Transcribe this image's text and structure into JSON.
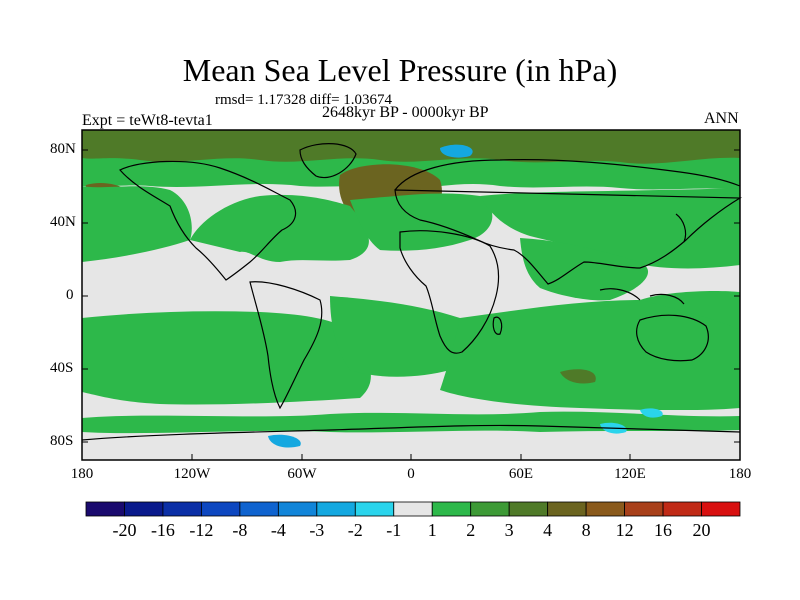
{
  "title": "Mean Sea Level Pressure (in hPa)",
  "stats": "rmsd= 1.17328 diff= 1.03674",
  "period": "2648kyr BP - 0000kyr BP",
  "experiment": "Expt = teWt8-tevta1",
  "season": "ANN",
  "lat_labels": [
    "80N",
    "40N",
    "0",
    "40S",
    "80S"
  ],
  "lon_labels": [
    "180",
    "120W",
    "60W",
    "0",
    "60E",
    "120E",
    "180"
  ],
  "colorbar": {
    "labels": [
      "-20",
      "-16",
      "-12",
      "-8",
      "-4",
      "-3",
      "-2",
      "-1",
      "1",
      "2",
      "3",
      "4",
      "8",
      "12",
      "16",
      "20"
    ],
    "colors": [
      "#1a0a6e",
      "#0a1a8c",
      "#0b2fa6",
      "#0d47c0",
      "#0f63cf",
      "#1185d9",
      "#14a8e0",
      "#2ad4ec",
      "#e6e6e6",
      "#2db84a",
      "#3d9a36",
      "#4f7a28",
      "#6b6420",
      "#8a5a1c",
      "#a8401a",
      "#c02a16",
      "#d81010"
    ]
  },
  "colors": {
    "neutral": "#e6e6e6",
    "green": "#2db84a",
    "darkgreen": "#4f7a28",
    "brown": "#6b6420",
    "cyan": "#2ad4ec",
    "blue": "#14a8e0"
  }
}
